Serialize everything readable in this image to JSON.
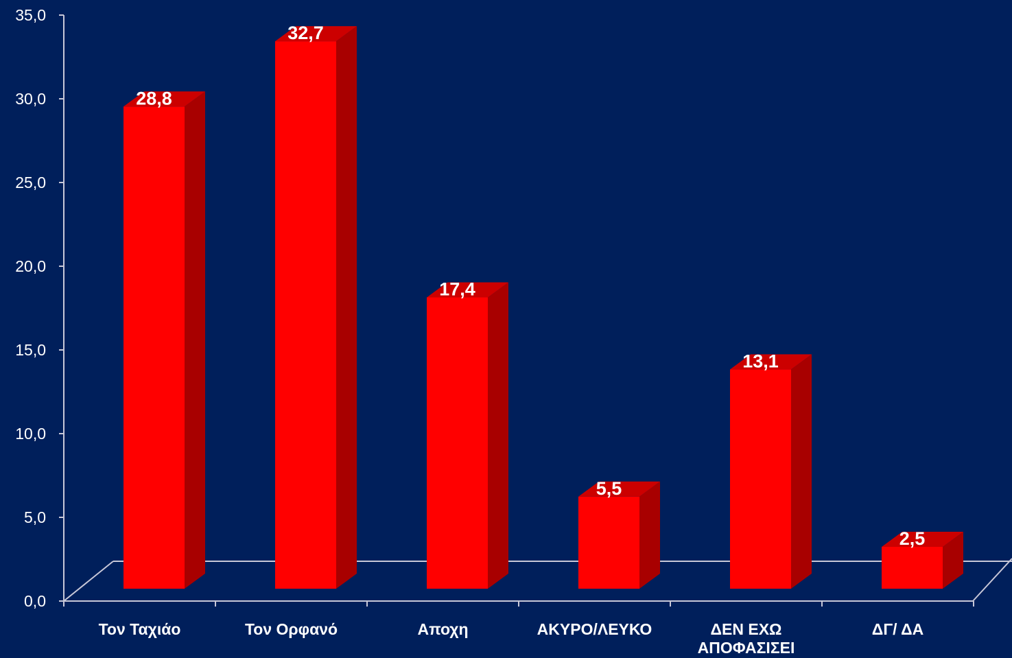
{
  "chart_data": {
    "type": "bar",
    "categories": [
      [
        "Τον Ταχιάο"
      ],
      [
        "Τον Ορφανό"
      ],
      [
        "Αποχη"
      ],
      [
        "ΑΚΥΡΟ/ΛΕΥΚΟ"
      ],
      [
        "ΔΕΝ ΕΧΩ",
        "ΑΠΟΦΑΣΙΣΕΙ"
      ],
      [
        "ΔΓ/ ΔΑ"
      ]
    ],
    "values": [
      28.8,
      32.7,
      17.4,
      5.5,
      13.1,
      2.5
    ],
    "value_labels": [
      "28,8",
      "32,7",
      "17,4",
      "5,5",
      "13,1",
      "2,5"
    ],
    "ylim": [
      0,
      35
    ],
    "yticks": [
      "0,0",
      "5,0",
      "10,0",
      "15,0",
      "20,0",
      "25,0",
      "30,0",
      "35,0"
    ],
    "grid": false,
    "style": "3d",
    "colors": {
      "background": "#001f5b",
      "bar_front": "#ff0000",
      "bar_side": "#a80000",
      "bar_top": "#cc0000",
      "axis": "#c8c8d8"
    }
  }
}
